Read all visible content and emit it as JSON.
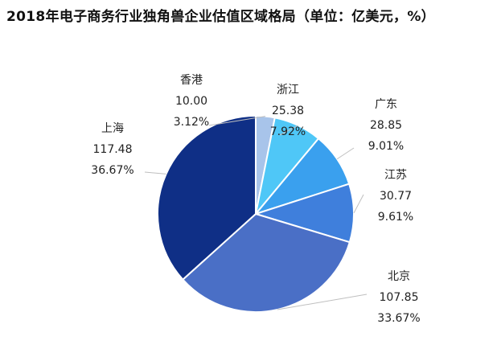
{
  "chart_data": {
    "type": "pie",
    "title": "2018年电子商务行业独角兽企业估值区域格局（单位：亿美元，%）",
    "slices": [
      {
        "name": "浙江",
        "value": 25.38,
        "value_label": "25.38",
        "percent_label": "7.92%",
        "color": "#8ab4e6"
      },
      {
        "name": "广东",
        "value": 28.85,
        "value_label": "28.85",
        "percent_label": "9.01%",
        "color": "#3ab8f0"
      },
      {
        "name": "江苏",
        "value": 30.77,
        "value_label": "30.77",
        "percent_label": "9.61%",
        "color": "#4a8fe0"
      },
      {
        "name": "北京",
        "value": 107.85,
        "value_label": "107.85",
        "percent_label": "33.67%",
        "color": "#3a6fd0"
      },
      {
        "name": "上海",
        "value": 117.48,
        "value_label": "117.48",
        "percent_label": "36.67%",
        "color": "#4872c4"
      },
      {
        "name": "香港",
        "value": 10.0,
        "value_label": "10.00",
        "percent_label": "3.12%",
        "color": "#0c2a78"
      }
    ]
  }
}
